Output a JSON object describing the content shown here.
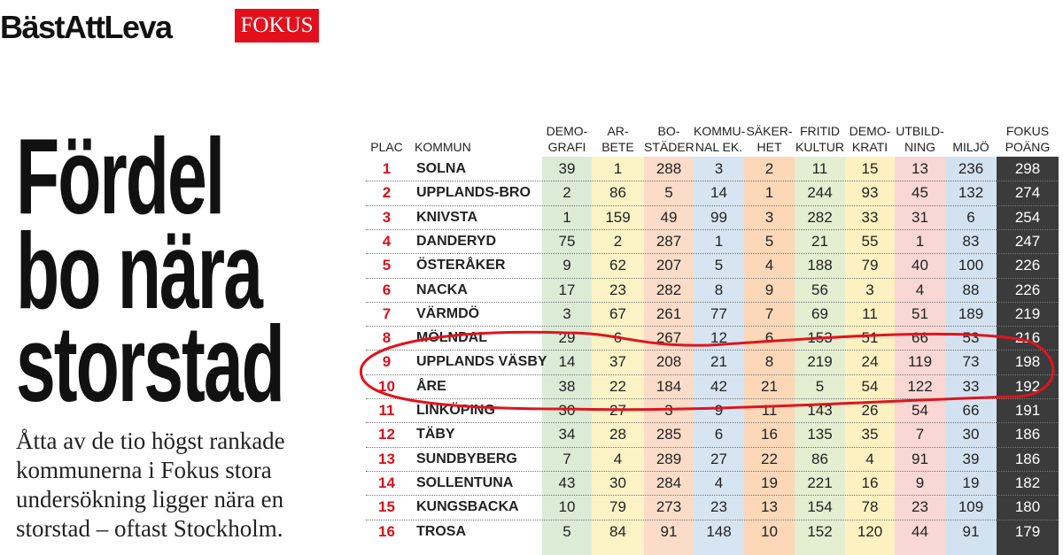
{
  "header": {
    "brand": "BästAttLeva",
    "logo": "FOKUS"
  },
  "headline": {
    "lines": [
      "Fördel",
      "bo nära",
      "storstad"
    ]
  },
  "body": "Åtta av de tio högst rankade kommunerna i Fokus stora undersökning ligger nära en storstad – oftast Stockholm.",
  "table": {
    "columns": [
      [
        "PLAC"
      ],
      [
        "KOMMUN"
      ],
      [
        "DEMO-",
        "GRAFI"
      ],
      [
        "AR-",
        "BETE"
      ],
      [
        "BO-",
        "STÄDER"
      ],
      [
        "KOMMU-",
        "NAL EK."
      ],
      [
        "SÄKER-",
        "HET"
      ],
      [
        "FRITID",
        "KULTUR"
      ],
      [
        "DEMO-",
        "KRATI"
      ],
      [
        "UTBILD-",
        "NING"
      ],
      [
        "MILJÖ"
      ],
      [
        "FOKUS",
        "POÄNG"
      ]
    ],
    "rows": [
      [
        1,
        "SOLNA",
        39,
        1,
        288,
        3,
        2,
        11,
        15,
        13,
        236,
        298
      ],
      [
        2,
        "UPPLANDS-BRO",
        2,
        86,
        5,
        14,
        1,
        244,
        93,
        45,
        132,
        274
      ],
      [
        3,
        "KNIVSTA",
        1,
        159,
        49,
        99,
        3,
        282,
        33,
        31,
        6,
        254
      ],
      [
        4,
        "DANDERYD",
        75,
        2,
        287,
        1,
        5,
        21,
        55,
        1,
        83,
        247
      ],
      [
        5,
        "ÖSTERÅKER",
        9,
        62,
        207,
        5,
        4,
        188,
        79,
        40,
        100,
        226
      ],
      [
        6,
        "NACKA",
        17,
        23,
        282,
        8,
        9,
        56,
        3,
        4,
        88,
        226
      ],
      [
        7,
        "VÄRMDÖ",
        3,
        67,
        261,
        77,
        7,
        69,
        11,
        51,
        189,
        219
      ],
      [
        8,
        "MÖLNDAL",
        29,
        6,
        267,
        12,
        6,
        153,
        51,
        66,
        53,
        216
      ],
      [
        9,
        "UPPLANDS VÄSBY",
        14,
        37,
        208,
        21,
        8,
        219,
        24,
        119,
        73,
        198
      ],
      [
        10,
        "ÅRE",
        38,
        22,
        184,
        42,
        21,
        5,
        54,
        122,
        33,
        192
      ],
      [
        11,
        "LINKÖPING",
        30,
        27,
        3,
        9,
        11,
        143,
        26,
        54,
        66,
        191
      ],
      [
        12,
        "TÄBY",
        34,
        28,
        285,
        6,
        16,
        135,
        35,
        7,
        30,
        186
      ],
      [
        13,
        "SUNDBYBERG",
        7,
        4,
        289,
        27,
        22,
        86,
        4,
        91,
        39,
        186
      ],
      [
        14,
        "SOLLENTUNA",
        43,
        30,
        284,
        4,
        19,
        221,
        16,
        9,
        19,
        182
      ],
      [
        15,
        "KUNGSBACKA",
        10,
        79,
        273,
        23,
        13,
        154,
        78,
        23,
        109,
        180
      ],
      [
        16,
        "TROSA",
        5,
        84,
        91,
        148,
        10,
        152,
        120,
        44,
        91,
        179
      ]
    ]
  }
}
